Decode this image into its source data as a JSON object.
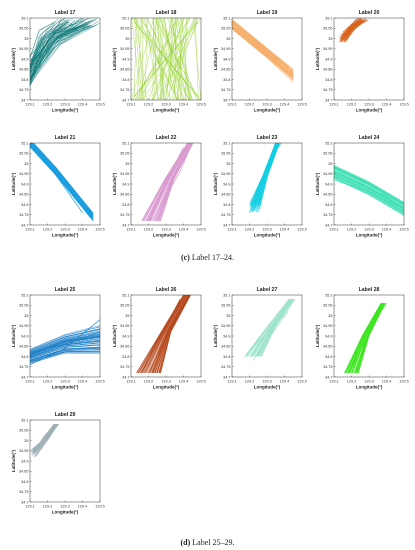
{
  "chart_data": [
    {
      "type": "line",
      "title": "Label 17",
      "color": "#137d7b",
      "pattern": "fan_ne_up",
      "xlabel": "Longitude(°)",
      "ylabel": "Latitude(°)",
      "xlim": [
        129.1,
        129.5
      ],
      "ylim": [
        34.7,
        35.1
      ],
      "xticks": [
        "129.1",
        "129.2",
        "129.3",
        "129.4",
        "129.5"
      ],
      "yticks": [
        "34.7",
        "34.75",
        "34.8",
        "34.85",
        "34.9",
        "34.95",
        "35",
        "35.05",
        "35.1"
      ],
      "grid": false,
      "series": [
        {
          "x": [
            129.1,
            129.16,
            129.22,
            129.27,
            129.3
          ],
          "y": [
            34.8,
            34.92,
            35.02,
            35.08,
            35.1
          ]
        },
        {
          "x": [
            129.1,
            129.18,
            129.25,
            129.32
          ],
          "y": [
            34.86,
            34.96,
            35.04,
            35.08
          ]
        }
      ]
    },
    {
      "type": "line",
      "title": "Label 18",
      "color": "#9ad43a",
      "pattern": "crosshatch",
      "xlabel": "Longitude(°)",
      "ylabel": "Latitude(°)",
      "xlim": [
        129.1,
        129.5
      ],
      "ylim": [
        34.7,
        35.1
      ],
      "xticks": [
        "129.1",
        "129.2",
        "129.3",
        "129.4",
        "129.5"
      ],
      "yticks": [
        "34.7",
        "34.75",
        "34.8",
        "34.85",
        "34.9",
        "34.95",
        "35",
        "35.05",
        "35.1"
      ],
      "grid": false,
      "series": [
        {
          "x": [
            129.12,
            129.3,
            129.48
          ],
          "y": [
            35.08,
            34.9,
            34.72
          ]
        },
        {
          "x": [
            129.12,
            129.3,
            129.48
          ],
          "y": [
            34.72,
            34.9,
            35.08
          ]
        }
      ]
    },
    {
      "type": "line",
      "title": "Label 19",
      "color": "#f4ae68",
      "pattern": "diag_down",
      "xlabel": "Longitude(°)",
      "ylabel": "Latitude(°)",
      "xlim": [
        129.1,
        129.5
      ],
      "ylim": [
        34.7,
        35.1
      ],
      "xticks": [
        "129.1",
        "129.2",
        "129.3",
        "129.4",
        "129.5"
      ],
      "yticks": [
        "34.7",
        "34.75",
        "34.8",
        "34.85",
        "34.9",
        "34.95",
        "35",
        "35.05",
        "35.1"
      ],
      "grid": false,
      "series": [
        {
          "x": [
            129.1,
            129.25,
            129.42
          ],
          "y": [
            35.08,
            34.98,
            34.86
          ]
        },
        {
          "x": [
            129.12,
            129.28,
            129.44
          ],
          "y": [
            35.04,
            34.94,
            34.82
          ]
        }
      ]
    },
    {
      "type": "line",
      "title": "Label 20",
      "color": "#d9621c",
      "pattern": "corner_cluster",
      "xlabel": "Longitude(°)",
      "ylabel": "Latitude(°)",
      "xlim": [
        129.1,
        129.5
      ],
      "ylim": [
        34.7,
        35.1
      ],
      "xticks": [
        "129.1",
        "129.2",
        "129.3",
        "129.4",
        "129.5"
      ],
      "yticks": [
        "34.7",
        "34.75",
        "34.8",
        "34.85",
        "34.9",
        "34.95",
        "35",
        "35.05",
        "35.1"
      ],
      "grid": false,
      "series": [
        {
          "x": [
            129.14,
            129.18,
            129.22,
            129.26
          ],
          "y": [
            35.0,
            35.04,
            35.07,
            35.09
          ]
        },
        {
          "x": [
            129.15,
            129.2,
            129.24
          ],
          "y": [
            35.03,
            35.07,
            35.1
          ]
        }
      ]
    },
    {
      "type": "line",
      "title": "Label 21",
      "color": "#1a9ee0",
      "pattern": "band_down",
      "xlabel": "Longitude(°)",
      "ylabel": "Latitude(°)",
      "xlim": [
        129.1,
        129.5
      ],
      "ylim": [
        34.7,
        35.1
      ],
      "xticks": [
        "129.1",
        "129.2",
        "129.3",
        "129.4",
        "129.5"
      ],
      "yticks": [
        "34.7",
        "34.75",
        "34.8",
        "34.85",
        "34.9",
        "34.95",
        "35",
        "35.05",
        "35.1"
      ],
      "grid": false,
      "series": [
        {
          "x": [
            129.1,
            129.2,
            129.3,
            129.4
          ],
          "y": [
            35.1,
            35.0,
            34.88,
            34.76
          ]
        },
        {
          "x": [
            129.1,
            129.22,
            129.34,
            129.44
          ],
          "y": [
            35.08,
            34.98,
            34.86,
            34.74
          ]
        }
      ]
    },
    {
      "type": "line",
      "title": "Label 22",
      "color": "#d99ad0",
      "pattern": "band_up_pink",
      "xlabel": "Longitude(°)",
      "ylabel": "Latitude(°)",
      "xlim": [
        129.1,
        129.5
      ],
      "ylim": [
        34.7,
        35.1
      ],
      "xticks": [
        "129.1",
        "129.2",
        "129.3",
        "129.4",
        "129.5"
      ],
      "yticks": [
        "34.7",
        "34.75",
        "34.8",
        "34.85",
        "34.9",
        "34.95",
        "35",
        "35.05",
        "35.1"
      ],
      "grid": false,
      "series": [
        {
          "x": [
            129.18,
            129.26,
            129.34,
            129.4
          ],
          "y": [
            34.74,
            34.86,
            34.98,
            35.08
          ]
        },
        {
          "x": [
            129.22,
            129.3,
            129.38,
            129.44
          ],
          "y": [
            34.72,
            34.84,
            34.96,
            35.08
          ]
        }
      ]
    },
    {
      "type": "line",
      "title": "Label 23",
      "color": "#14cfe4",
      "pattern": "band_up_cyan",
      "xlabel": "Longitude(°)",
      "ylabel": "Latitude(°)",
      "xlim": [
        129.1,
        129.5
      ],
      "ylim": [
        34.7,
        35.1
      ],
      "xticks": [
        "129.1",
        "129.2",
        "129.3",
        "129.4",
        "129.5"
      ],
      "yticks": [
        "34.7",
        "34.75",
        "34.8",
        "34.85",
        "34.9",
        "34.95",
        "35",
        "35.05",
        "35.1"
      ],
      "grid": false,
      "series": [
        {
          "x": [
            129.2,
            129.26,
            129.32,
            129.38
          ],
          "y": [
            34.76,
            34.9,
            35.02,
            35.1
          ]
        },
        {
          "x": [
            129.22,
            129.28,
            129.34
          ],
          "y": [
            34.8,
            34.94,
            35.06
          ]
        }
      ]
    },
    {
      "type": "line",
      "title": "Label 24",
      "color": "#3fe0b4",
      "pattern": "band_down_mint",
      "xlabel": "Longitude(°)",
      "ylabel": "Latitude(°)",
      "xlim": [
        129.1,
        129.5
      ],
      "ylim": [
        34.7,
        35.1
      ],
      "xticks": [
        "129.1",
        "129.2",
        "129.3",
        "129.4",
        "129.5"
      ],
      "yticks": [
        "34.7",
        "34.75",
        "34.8",
        "34.85",
        "34.9",
        "34.95",
        "35",
        "35.05",
        "35.1"
      ],
      "grid": false,
      "series": [
        {
          "x": [
            129.1,
            129.25,
            129.4,
            129.5
          ],
          "y": [
            34.96,
            34.9,
            34.84,
            34.78
          ]
        },
        {
          "x": [
            129.1,
            129.3,
            129.5
          ],
          "y": [
            34.92,
            34.86,
            34.78
          ]
        }
      ]
    },
    {
      "type": "line",
      "title": "Label 25",
      "color": "#1d7fc8",
      "pattern": "broad_fan",
      "xlabel": "Longitude(°)",
      "ylabel": "Latitude(°)",
      "xlim": [
        129.1,
        129.5
      ],
      "ylim": [
        34.7,
        35.1
      ],
      "xticks": [
        "129.1",
        "129.2",
        "129.3",
        "129.4",
        "129.5"
      ],
      "yticks": [
        "34.7",
        "34.75",
        "34.8",
        "34.85",
        "34.9",
        "34.95",
        "35",
        "35.05",
        "35.1"
      ],
      "grid": false,
      "series": [
        {
          "x": [
            129.1,
            129.3,
            129.5
          ],
          "y": [
            34.82,
            34.86,
            34.92
          ]
        },
        {
          "x": [
            129.1,
            129.3,
            129.5
          ],
          "y": [
            34.76,
            34.84,
            34.98
          ]
        }
      ]
    },
    {
      "type": "line",
      "title": "Label 26",
      "color": "#b54a1e",
      "pattern": "band_up_rust",
      "xlabel": "Longitude(°)",
      "ylabel": "Latitude(°)",
      "xlim": [
        129.1,
        129.5
      ],
      "ylim": [
        34.7,
        35.1
      ],
      "xticks": [
        "129.1",
        "129.2",
        "129.3",
        "129.4",
        "129.5"
      ],
      "yticks": [
        "34.7",
        "34.75",
        "34.8",
        "34.85",
        "34.9",
        "34.95",
        "35",
        "35.05",
        "35.1"
      ],
      "grid": false,
      "series": [
        {
          "x": [
            129.16,
            129.24,
            129.32,
            129.38
          ],
          "y": [
            34.72,
            34.86,
            34.98,
            35.08
          ]
        },
        {
          "x": [
            129.2,
            129.28,
            129.36,
            129.42
          ],
          "y": [
            34.72,
            34.86,
            34.98,
            35.08
          ]
        }
      ]
    },
    {
      "type": "line",
      "title": "Label 27",
      "color": "#9ee3cc",
      "pattern": "band_up_light",
      "xlabel": "Longitude(°)",
      "ylabel": "Latitude(°)",
      "xlim": [
        129.1,
        129.5
      ],
      "ylim": [
        34.7,
        35.1
      ],
      "xticks": [
        "129.1",
        "129.2",
        "129.3",
        "129.4",
        "129.5"
      ],
      "yticks": [
        "34.7",
        "34.75",
        "34.8",
        "34.85",
        "34.9",
        "34.95",
        "35",
        "35.05",
        "35.1"
      ],
      "grid": false,
      "series": [
        {
          "x": [
            129.2,
            129.3,
            129.4,
            129.46
          ],
          "y": [
            34.82,
            34.92,
            35.0,
            35.08
          ]
        },
        {
          "x": [
            129.22,
            129.32,
            129.42
          ],
          "y": [
            34.78,
            34.9,
            35.02
          ]
        }
      ]
    },
    {
      "type": "line",
      "title": "Label 28",
      "color": "#3ce620",
      "pattern": "band_up_green",
      "xlabel": "Longitude(°)",
      "ylabel": "Latitude(°)",
      "xlim": [
        129.1,
        129.5
      ],
      "ylim": [
        34.7,
        35.1
      ],
      "xticks": [
        "129.1",
        "129.2",
        "129.3",
        "129.4",
        "129.5"
      ],
      "yticks": [
        "34.7",
        "34.75",
        "34.8",
        "34.85",
        "34.9",
        "34.95",
        "35",
        "35.05",
        "35.1"
      ],
      "grid": false,
      "series": [
        {
          "x": [
            129.16,
            129.24,
            129.32,
            129.4
          ],
          "y": [
            34.72,
            34.84,
            34.96,
            35.06
          ]
        },
        {
          "x": [
            129.2,
            129.28,
            129.36
          ],
          "y": [
            34.74,
            34.88,
            35.02
          ]
        }
      ]
    },
    {
      "type": "line",
      "title": "Label 29",
      "color": "#9fb0b6",
      "pattern": "short_grey",
      "xlabel": "Longitude(°)",
      "ylabel": "Latitude(°)",
      "xlim": [
        129.1,
        129.5
      ],
      "ylim": [
        34.7,
        35.1
      ],
      "xticks": [
        "129.1",
        "129.2",
        "129.3",
        "129.4",
        "129.5"
      ],
      "yticks": [
        "34.7",
        "34.75",
        "34.8",
        "34.85",
        "34.9",
        "34.95",
        "35",
        "35.05",
        "35.1"
      ],
      "grid": false,
      "series": [
        {
          "x": [
            129.12,
            129.18,
            129.24
          ],
          "y": [
            34.94,
            35.02,
            35.08
          ]
        },
        {
          "x": [
            129.13,
            129.2,
            129.26
          ],
          "y": [
            34.92,
            35.0,
            35.08
          ]
        }
      ]
    }
  ],
  "captions": {
    "c_label": "(c)",
    "c_text": " Label 17–24.",
    "d_label": "(d)",
    "d_text": " Label 25–29."
  }
}
